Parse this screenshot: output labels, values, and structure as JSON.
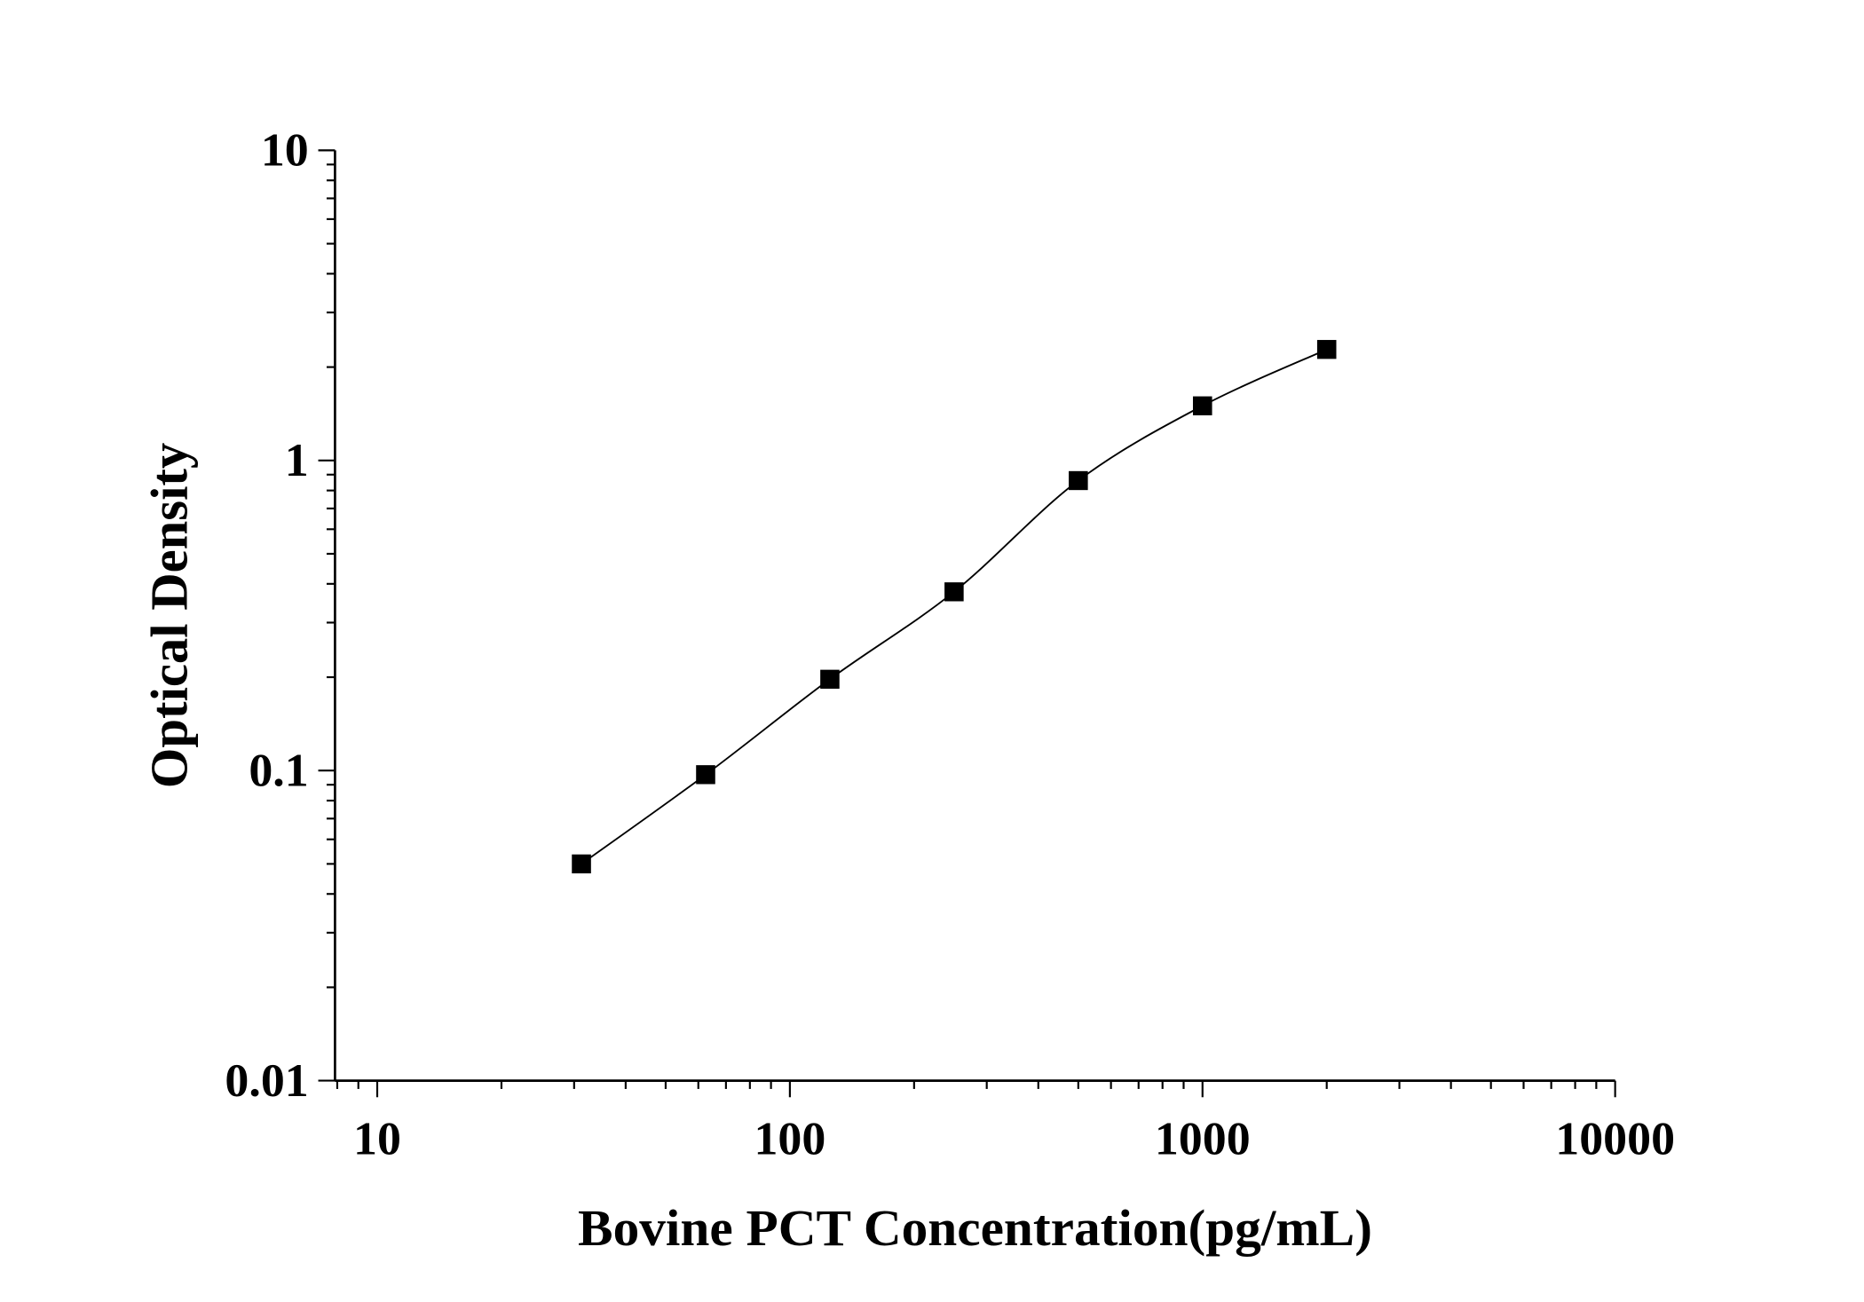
{
  "chart_data": {
    "type": "line",
    "title": "",
    "xlabel": "Bovine PCT Concentration(pg/mL)",
    "ylabel": "Optical Density",
    "x_scale": "log",
    "y_scale": "log",
    "xlim": [
      7.9,
      10000
    ],
    "ylim": [
      0.01,
      10
    ],
    "x_ticks": [
      10,
      100,
      1000,
      10000
    ],
    "x_tick_labels": [
      "10",
      "100",
      "1000",
      "10000"
    ],
    "y_ticks": [
      0.01,
      0.1,
      1,
      10
    ],
    "y_tick_labels": [
      "0.01",
      "0.1",
      "1",
      "10"
    ],
    "grid": false,
    "legend": "none",
    "marker": "square",
    "color": "#000000",
    "series": [
      {
        "x": [
          31.25,
          62.5,
          125,
          250,
          500,
          1000,
          2000
        ],
        "y": [
          0.05,
          0.097,
          0.197,
          0.377,
          0.861,
          1.5,
          2.28
        ]
      }
    ]
  }
}
